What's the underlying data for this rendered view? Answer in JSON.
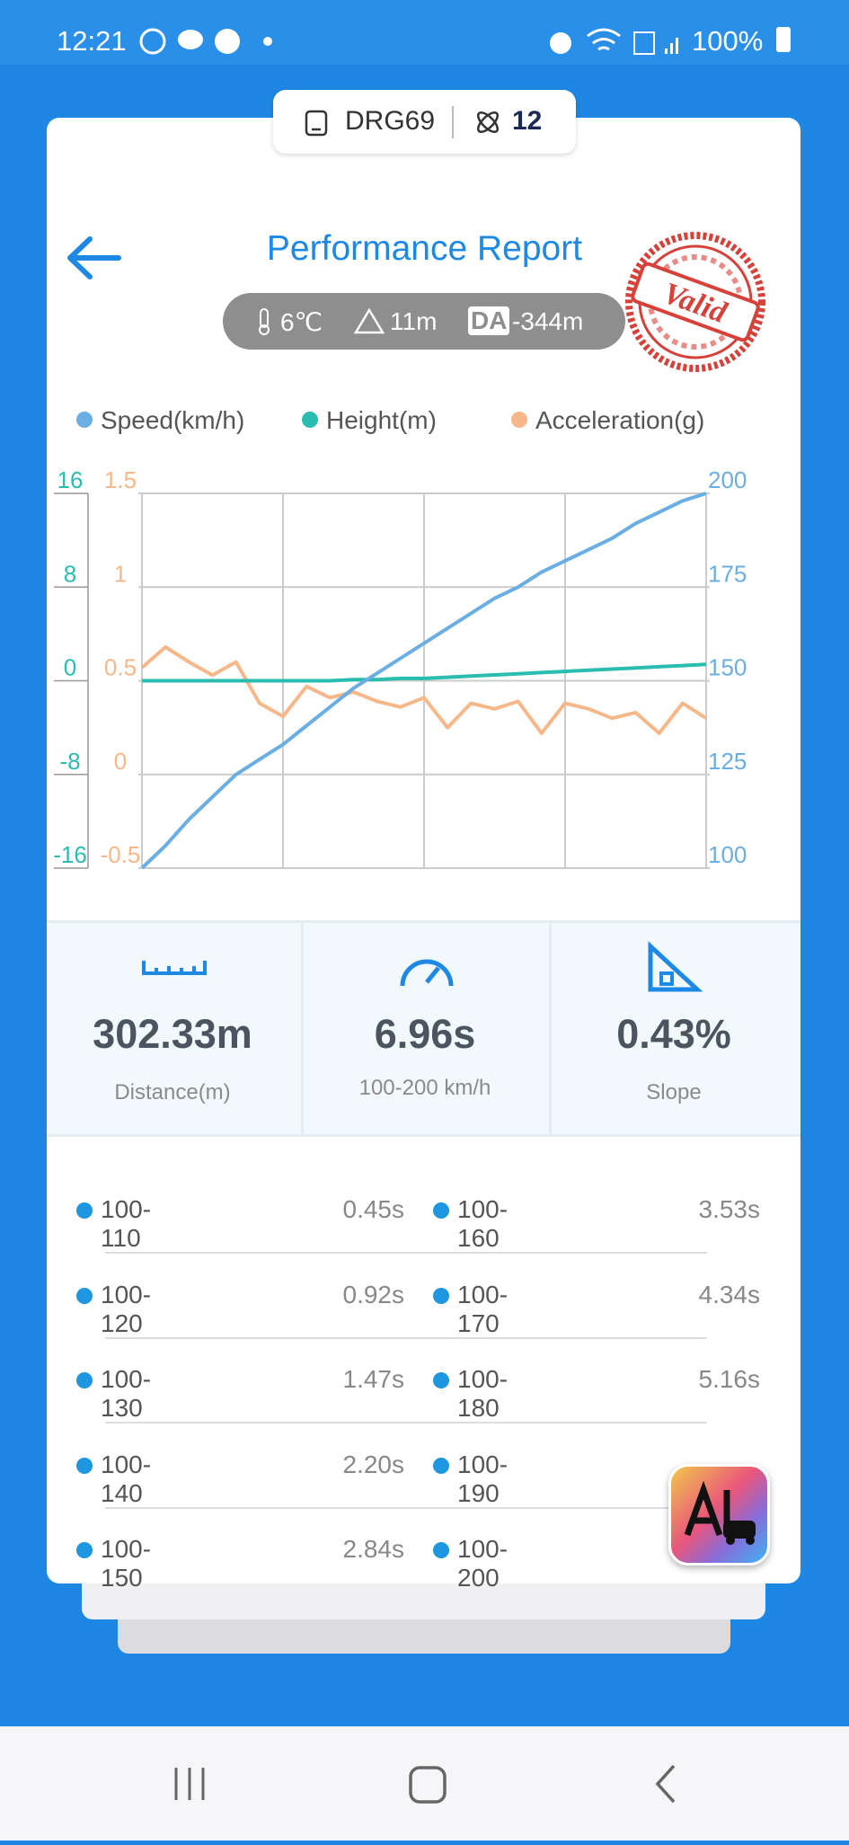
{
  "status_bar": {
    "time": "12:21",
    "battery": "100%"
  },
  "vehicle": {
    "name": "DRG69",
    "count": "12"
  },
  "header": {
    "title": "Performance Report",
    "temperature": "6℃",
    "altitude": "11m",
    "da_label": "DA",
    "density_altitude": "-344m",
    "stamp": "Valid"
  },
  "chart": {
    "type": "line",
    "series": [
      {
        "name": "Speed(km/h)",
        "color": "#6aaee3",
        "axis": "y2",
        "values": [
          100,
          106,
          113,
          119,
          125,
          129,
          133,
          138,
          143,
          148,
          152,
          156,
          160,
          164,
          168,
          172,
          175,
          179,
          182,
          185,
          188,
          192,
          195,
          198,
          200
        ]
      },
      {
        "name": "Height(m)",
        "color": "#2bbcb0",
        "axis": "y",
        "values": [
          0,
          0,
          0,
          0,
          0,
          0,
          0,
          0,
          0,
          0.1,
          0.1,
          0.2,
          0.2,
          0.3,
          0.4,
          0.5,
          0.6,
          0.7,
          0.8,
          0.9,
          1.0,
          1.1,
          1.2,
          1.3,
          1.4
        ]
      },
      {
        "name": "Acceleration(g)",
        "color": "#f7b889",
        "axis": "y3",
        "values": [
          0.57,
          0.68,
          0.6,
          0.53,
          0.6,
          0.38,
          0.31,
          0.47,
          0.41,
          0.44,
          0.39,
          0.36,
          0.41,
          0.25,
          0.38,
          0.35,
          0.39,
          0.22,
          0.38,
          0.35,
          0.3,
          0.33,
          0.22,
          0.38,
          0.3
        ]
      }
    ],
    "ylim": [
      -16,
      16
    ],
    "yticks": [
      16,
      8,
      0,
      -8,
      -16
    ],
    "y3lim": [
      -0.5,
      1.5
    ],
    "y3ticks": [
      1.5,
      1,
      0.5,
      0,
      -0.5
    ],
    "y2lim": [
      100,
      200
    ],
    "y2ticks": [
      200,
      175,
      150,
      125,
      100
    ],
    "grid": true
  },
  "stats": [
    {
      "value": "302.33m",
      "label": "Distance(m)"
    },
    {
      "value": "6.96s",
      "label": "100-200 km/h"
    },
    {
      "value": "0.43%",
      "label": "Slope"
    }
  ],
  "splits": [
    {
      "range": "100-110",
      "time": "0.45s"
    },
    {
      "range": "100-120",
      "time": "0.92s"
    },
    {
      "range": "100-130",
      "time": "1.47s"
    },
    {
      "range": "100-140",
      "time": "2.20s"
    },
    {
      "range": "100-150",
      "time": "2.84s"
    },
    {
      "range": "100-160",
      "time": "3.53s"
    },
    {
      "range": "100-170",
      "time": "4.34s"
    },
    {
      "range": "100-180",
      "time": "5.16s"
    },
    {
      "range": "100-190",
      "time": null
    },
    {
      "range": "100-200",
      "time": null
    }
  ]
}
